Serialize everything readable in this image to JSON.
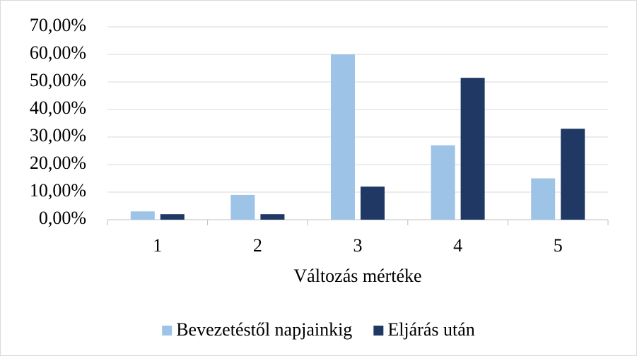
{
  "chart_data": {
    "type": "bar",
    "x_label": "Változás mértéke",
    "categories": [
      "1",
      "2",
      "3",
      "4",
      "5"
    ],
    "series": [
      {
        "name": "Bevezetéstől napjainkig",
        "color": "#9dc3e6",
        "values": [
          3,
          9,
          60,
          27,
          15
        ]
      },
      {
        "name": "Eljárás után",
        "color": "#203864",
        "values": [
          2,
          2,
          12,
          51.5,
          33
        ]
      }
    ],
    "ylim": [
      0,
      70
    ],
    "yticks": [
      {
        "value": 0,
        "label": "0,00%"
      },
      {
        "value": 10,
        "label": "10,00%"
      },
      {
        "value": 20,
        "label": "20,00%"
      },
      {
        "value": 30,
        "label": "30,00%"
      },
      {
        "value": 40,
        "label": "40,00%"
      },
      {
        "value": 50,
        "label": "50,00%"
      },
      {
        "value": 60,
        "label": "60,00%"
      },
      {
        "value": 70,
        "label": "70,00%"
      }
    ],
    "grid": true,
    "legend": "bottom"
  }
}
